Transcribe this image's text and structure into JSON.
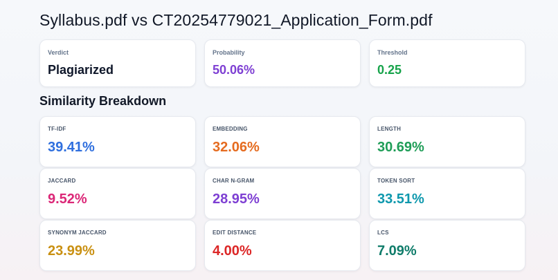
{
  "header": {
    "title": "Syllabus.pdf vs CT20254779021_Application_Form.pdf"
  },
  "summary": {
    "verdict": {
      "label": "Verdict",
      "value": "Plagiarized",
      "color": "#0f172a"
    },
    "probability": {
      "label": "Probability",
      "value": "50.06%",
      "color": "#7e3fd3"
    },
    "threshold": {
      "label": "Threshold",
      "value": "0.25",
      "color": "#16a34a"
    }
  },
  "breakdown": {
    "title": "Similarity Breakdown",
    "metrics": [
      {
        "label": "TF-IDF",
        "value": "39.41%",
        "color": "#2f6fde"
      },
      {
        "label": "EMBEDDING",
        "value": "32.06%",
        "color": "#e56b1f"
      },
      {
        "label": "LENGTH",
        "value": "30.69%",
        "color": "#1f9d57"
      },
      {
        "label": "JACCARD",
        "value": "9.52%",
        "color": "#db2777"
      },
      {
        "label": "CHAR N-GRAM",
        "value": "28.95%",
        "color": "#7e3fd3"
      },
      {
        "label": "TOKEN SORT",
        "value": "33.51%",
        "color": "#0e98ad"
      },
      {
        "label": "SYNONYM JACCARD",
        "value": "23.99%",
        "color": "#c99012"
      },
      {
        "label": "EDIT DISTANCE",
        "value": "4.00%",
        "color": "#dc2626"
      },
      {
        "label": "LCS",
        "value": "7.09%",
        "color": "#0f7c6a"
      }
    ]
  }
}
